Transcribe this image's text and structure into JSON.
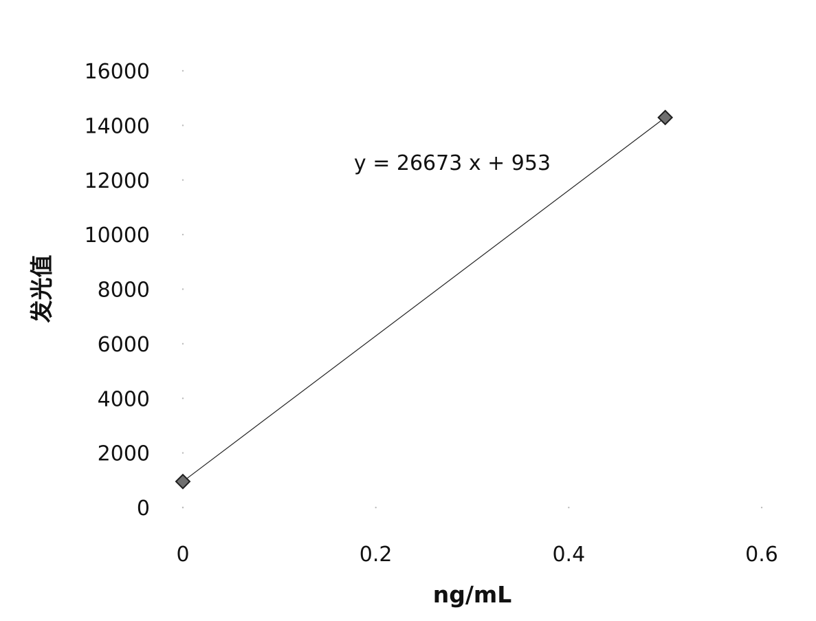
{
  "chart_data": {
    "type": "scatter",
    "title": "",
    "xlabel": "ng/mL",
    "ylabel": "发光值",
    "xlim": [
      0,
      0.6
    ],
    "ylim": [
      0,
      16000
    ],
    "x_ticks": [
      "0",
      "0.2",
      "0.4",
      "0.6"
    ],
    "y_ticks": [
      "0",
      "2000",
      "4000",
      "6000",
      "8000",
      "10000",
      "12000",
      "14000",
      "16000"
    ],
    "grid": false,
    "legend": "none",
    "series": [
      {
        "marker": "diamond",
        "points": [
          {
            "x": 0,
            "y": 953
          },
          {
            "x": 0.5,
            "y": 14290
          }
        ]
      }
    ],
    "trendline": {
      "type": "linear",
      "slope": 26673,
      "intercept": 953,
      "x_range": [
        0,
        0.5
      ],
      "equation_label": "y = 26673 x + 953"
    },
    "colors": {
      "marker_fill": "#6f6f6f",
      "marker_stroke": "#1f1f1f",
      "line": "#222222"
    }
  }
}
